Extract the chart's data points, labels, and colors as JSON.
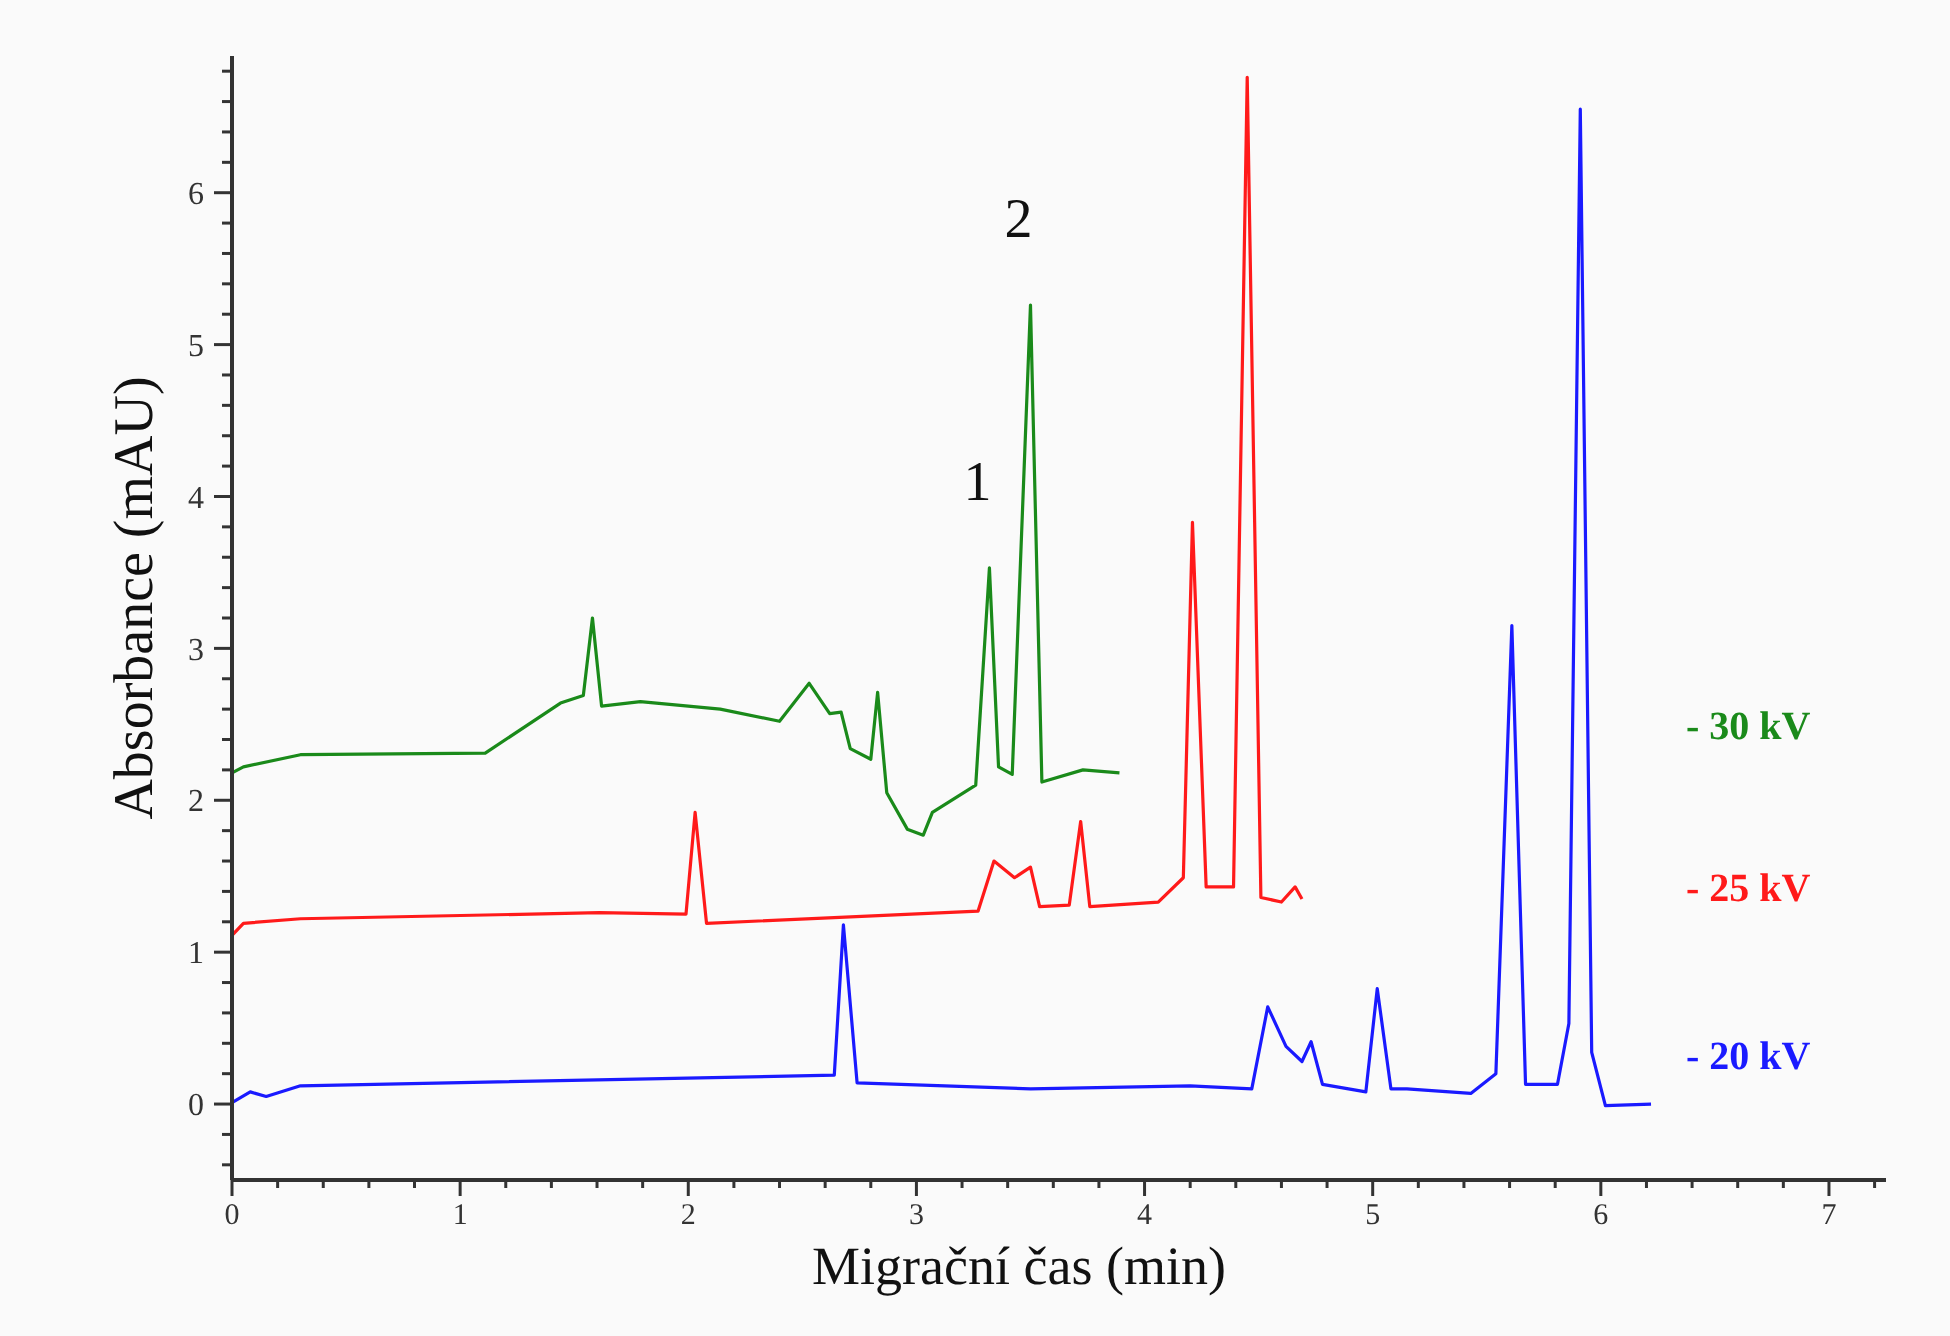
{
  "chart_data": {
    "type": "line",
    "xlabel": "Migrační čas (min)",
    "ylabel": "Absorbance (mAU)",
    "xlim": [
      0,
      7.25
    ],
    "ylim": [
      -0.5,
      6.9
    ],
    "xticks": [
      0,
      {
        "value": 0.2,
        "label": null
      },
      {
        "value": 0.4,
        "label": null
      },
      {
        "value": 0.6,
        "label": null
      },
      {
        "value": 0.8,
        "label": null
      },
      1,
      {
        "value": 1.2,
        "label": null
      },
      {
        "value": 1.4,
        "label": null
      },
      {
        "value": 1.6,
        "label": null
      },
      {
        "value": 1.8,
        "label": null
      },
      2,
      {
        "value": 2.2,
        "label": null
      },
      {
        "value": 2.4,
        "label": null
      },
      {
        "value": 2.6,
        "label": null
      },
      {
        "value": 2.8,
        "label": null
      },
      3,
      {
        "value": 3.2,
        "label": null
      },
      {
        "value": 3.4,
        "label": null
      },
      {
        "value": 3.6,
        "label": null
      },
      {
        "value": 3.8,
        "label": null
      },
      4,
      {
        "value": 4.2,
        "label": null
      },
      {
        "value": 4.4,
        "label": null
      },
      {
        "value": 4.6,
        "label": null
      },
      {
        "value": 4.8,
        "label": null
      },
      5,
      {
        "value": 5.2,
        "label": null
      },
      {
        "value": 5.4,
        "label": null
      },
      {
        "value": 5.6,
        "label": null
      },
      {
        "value": 5.8,
        "label": null
      },
      6,
      {
        "value": 6.2,
        "label": null
      },
      {
        "value": 6.4,
        "label": null
      },
      {
        "value": 6.6,
        "label": null
      },
      {
        "value": 6.8,
        "label": null
      },
      7,
      {
        "value": 7.2,
        "label": null
      }
    ],
    "yticks": [
      {
        "value": -0.4,
        "label": null
      },
      {
        "value": -0.2,
        "label": null
      },
      0,
      {
        "value": 0.2,
        "label": null
      },
      {
        "value": 0.4,
        "label": null
      },
      {
        "value": 0.6,
        "label": null
      },
      {
        "value": 0.8,
        "label": null
      },
      1,
      {
        "value": 1.2,
        "label": null
      },
      {
        "value": 1.4,
        "label": null
      },
      {
        "value": 1.6,
        "label": null
      },
      {
        "value": 1.8,
        "label": null
      },
      2,
      {
        "value": 2.2,
        "label": null
      },
      {
        "value": 2.4,
        "label": null
      },
      {
        "value": 2.6,
        "label": null
      },
      {
        "value": 2.8,
        "label": null
      },
      3,
      {
        "value": 3.2,
        "label": null
      },
      {
        "value": 3.4,
        "label": null
      },
      {
        "value": 3.6,
        "label": null
      },
      {
        "value": 3.8,
        "label": null
      },
      4,
      {
        "value": 4.2,
        "label": null
      },
      {
        "value": 4.4,
        "label": null
      },
      {
        "value": 4.6,
        "label": null
      },
      {
        "value": 4.8,
        "label": null
      },
      5,
      {
        "value": 5.2,
        "label": null
      },
      {
        "value": 5.4,
        "label": null
      },
      {
        "value": 5.6,
        "label": null
      },
      {
        "value": 5.8,
        "label": null
      },
      6,
      {
        "value": 6.2,
        "label": null
      },
      {
        "value": 6.4,
        "label": null
      },
      {
        "value": 6.6,
        "label": null
      },
      {
        "value": 6.8,
        "label": null
      }
    ],
    "grid": false,
    "legend": false,
    "marker": "none",
    "line_style": "solid",
    "series": [
      {
        "name": "- 30 kV",
        "color": "#1a8a1a",
        "x": [
          0,
          0.05,
          0.3,
          1.11,
          1.44,
          1.54,
          1.58,
          1.62,
          1.79,
          2.14,
          2.4,
          2.53,
          2.62,
          2.67,
          2.71,
          2.8,
          2.83,
          2.87,
          2.96,
          3.03,
          3.07,
          3.26,
          3.32,
          3.36,
          3.42,
          3.5,
          3.55,
          3.73,
          3.89
        ],
        "values": [
          2.18,
          2.22,
          2.3,
          2.31,
          2.64,
          2.69,
          3.2,
          2.62,
          2.65,
          2.6,
          2.52,
          2.77,
          2.57,
          2.58,
          2.34,
          2.27,
          2.71,
          2.05,
          1.81,
          1.77,
          1.92,
          2.1,
          3.53,
          2.22,
          2.17,
          5.26,
          2.12,
          2.2,
          2.18
        ]
      },
      {
        "name": "- 25 kV",
        "color": "#ff1a1a",
        "x": [
          0,
          0.05,
          0.3,
          1.61,
          1.99,
          2.03,
          2.08,
          3.27,
          3.34,
          3.43,
          3.5,
          3.54,
          3.67,
          3.72,
          3.76,
          4.06,
          4.17,
          4.21,
          4.27,
          4.39,
          4.45,
          4.51,
          4.6,
          4.66,
          4.69
        ],
        "values": [
          1.11,
          1.19,
          1.22,
          1.26,
          1.25,
          1.92,
          1.19,
          1.27,
          1.6,
          1.49,
          1.56,
          1.3,
          1.31,
          1.86,
          1.3,
          1.33,
          1.49,
          3.83,
          1.43,
          1.43,
          6.76,
          1.36,
          1.33,
          1.43,
          1.35
        ]
      },
      {
        "name": "- 20 kV",
        "color": "#1a1aff",
        "x": [
          0,
          0.08,
          0.15,
          0.3,
          2.64,
          2.68,
          2.74,
          3.5,
          4.2,
          4.47,
          4.54,
          4.62,
          4.69,
          4.73,
          4.78,
          4.97,
          5.02,
          5.08,
          5.15,
          5.43,
          5.54,
          5.61,
          5.67,
          5.81,
          5.86,
          5.91,
          5.96,
          6.02,
          6.22
        ],
        "values": [
          0.01,
          0.08,
          0.05,
          0.12,
          0.19,
          1.18,
          0.14,
          0.1,
          0.12,
          0.1,
          0.64,
          0.38,
          0.28,
          0.41,
          0.13,
          0.08,
          0.76,
          0.1,
          0.1,
          0.07,
          0.2,
          3.15,
          0.13,
          0.13,
          0.53,
          6.55,
          0.34,
          -0.01,
          0
        ]
      }
    ],
    "annotations": [
      {
        "text": "1",
        "x": 3.32,
        "y": 3.53
      },
      {
        "text": "2",
        "x": 3.5,
        "y": 5.26
      }
    ]
  }
}
